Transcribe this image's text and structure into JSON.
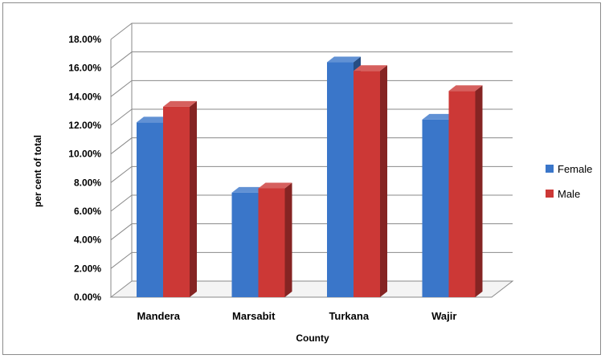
{
  "chart_data": {
    "type": "bar",
    "categories": [
      "Mandera",
      "Marsabit",
      "Turkana",
      "Wajir"
    ],
    "series": [
      {
        "name": "Female",
        "values": [
          12.2,
          7.3,
          16.4,
          12.4
        ],
        "color": "#3a76c9"
      },
      {
        "name": "Male",
        "values": [
          13.3,
          7.6,
          15.8,
          14.4
        ],
        "color": "#cc3836"
      }
    ],
    "ylim": [
      0,
      18
    ],
    "yticks": [
      "0.00%",
      "2.00%",
      "4.00%",
      "6.00%",
      "8.00%",
      "10.00%",
      "12.00%",
      "14.00%",
      "16.00%",
      "18.00%"
    ],
    "xlabel": "County",
    "ylabel": "per cent of total",
    "grid": true,
    "three_d": true,
    "legend_position": "right"
  }
}
